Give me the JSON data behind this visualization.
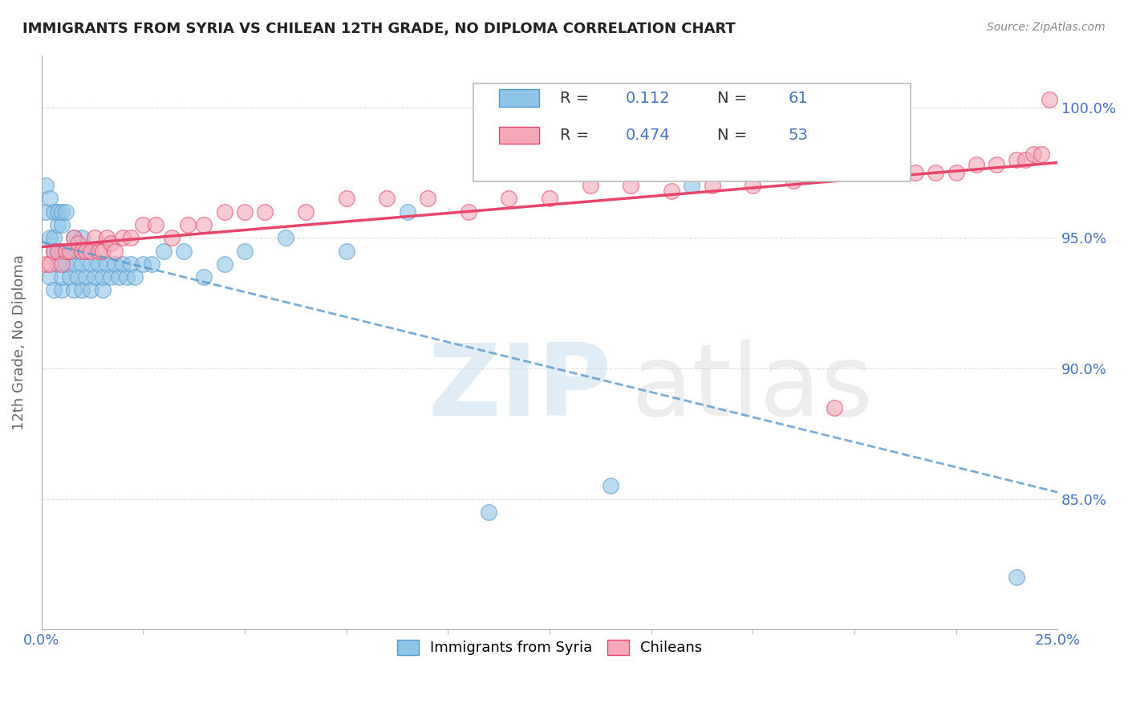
{
  "title": "IMMIGRANTS FROM SYRIA VS CHILEAN 12TH GRADE, NO DIPLOMA CORRELATION CHART",
  "source": "Source: ZipAtlas.com",
  "xlabel_label": "Immigrants from Syria",
  "ylabel_label": "12th Grade, No Diploma",
  "legend_label1": "Immigrants from Syria",
  "legend_label2": "Chileans",
  "R1": 0.112,
  "N1": 61,
  "R2": 0.474,
  "N2": 53,
  "color_syria": "#8ec4e8",
  "color_chile": "#f4a8b8",
  "color_syria_line": "#5599cc",
  "color_chile_line": "#e8456a",
  "xlim": [
    0.0,
    0.25
  ],
  "ylim": [
    0.8,
    1.02
  ],
  "xticks": [
    0.0,
    0.25
  ],
  "xticklabels": [
    "0.0%",
    "25.0%"
  ],
  "yticks": [
    0.85,
    0.9,
    0.95,
    1.0
  ],
  "yticklabels": [
    "85.0%",
    "90.0%",
    "95.0%",
    "100.0%"
  ],
  "syria_x": [
    0.001,
    0.001,
    0.002,
    0.002,
    0.002,
    0.003,
    0.003,
    0.003,
    0.003,
    0.004,
    0.004,
    0.004,
    0.004,
    0.005,
    0.005,
    0.005,
    0.005,
    0.005,
    0.006,
    0.006,
    0.006,
    0.007,
    0.007,
    0.008,
    0.008,
    0.008,
    0.009,
    0.009,
    0.01,
    0.01,
    0.01,
    0.011,
    0.011,
    0.012,
    0.012,
    0.013,
    0.014,
    0.015,
    0.015,
    0.016,
    0.017,
    0.018,
    0.019,
    0.02,
    0.021,
    0.022,
    0.023,
    0.025,
    0.027,
    0.03,
    0.035,
    0.04,
    0.045,
    0.05,
    0.06,
    0.075,
    0.09,
    0.11,
    0.14,
    0.16,
    0.24
  ],
  "syria_y": [
    0.96,
    0.97,
    0.935,
    0.95,
    0.965,
    0.93,
    0.945,
    0.95,
    0.96,
    0.94,
    0.945,
    0.955,
    0.96,
    0.93,
    0.935,
    0.945,
    0.955,
    0.96,
    0.94,
    0.945,
    0.96,
    0.935,
    0.945,
    0.93,
    0.94,
    0.95,
    0.935,
    0.945,
    0.93,
    0.94,
    0.95,
    0.935,
    0.945,
    0.93,
    0.94,
    0.935,
    0.94,
    0.93,
    0.935,
    0.94,
    0.935,
    0.94,
    0.935,
    0.94,
    0.935,
    0.94,
    0.935,
    0.94,
    0.94,
    0.945,
    0.945,
    0.935,
    0.94,
    0.945,
    0.95,
    0.945,
    0.96,
    0.845,
    0.855,
    0.97,
    0.82
  ],
  "chile_x": [
    0.001,
    0.002,
    0.003,
    0.004,
    0.005,
    0.006,
    0.007,
    0.008,
    0.009,
    0.01,
    0.011,
    0.012,
    0.013,
    0.014,
    0.015,
    0.016,
    0.017,
    0.018,
    0.02,
    0.022,
    0.025,
    0.028,
    0.032,
    0.036,
    0.04,
    0.045,
    0.05,
    0.055,
    0.065,
    0.075,
    0.085,
    0.095,
    0.105,
    0.115,
    0.125,
    0.135,
    0.145,
    0.155,
    0.165,
    0.175,
    0.185,
    0.195,
    0.205,
    0.215,
    0.22,
    0.225,
    0.23,
    0.235,
    0.24,
    0.242,
    0.244,
    0.246,
    0.248
  ],
  "chile_y": [
    0.94,
    0.94,
    0.945,
    0.945,
    0.94,
    0.945,
    0.945,
    0.95,
    0.948,
    0.945,
    0.945,
    0.945,
    0.95,
    0.945,
    0.945,
    0.95,
    0.948,
    0.945,
    0.95,
    0.95,
    0.955,
    0.955,
    0.95,
    0.955,
    0.955,
    0.96,
    0.96,
    0.96,
    0.96,
    0.965,
    0.965,
    0.965,
    0.96,
    0.965,
    0.965,
    0.97,
    0.97,
    0.968,
    0.97,
    0.97,
    0.972,
    0.885,
    0.975,
    0.975,
    0.975,
    0.975,
    0.978,
    0.978,
    0.98,
    0.98,
    0.982,
    0.982,
    1.003
  ],
  "watermark_zip_color": "#c8dff0",
  "watermark_atlas_color": "#d8d8d8",
  "background_color": "#ffffff",
  "grid_color": "#dddddd"
}
